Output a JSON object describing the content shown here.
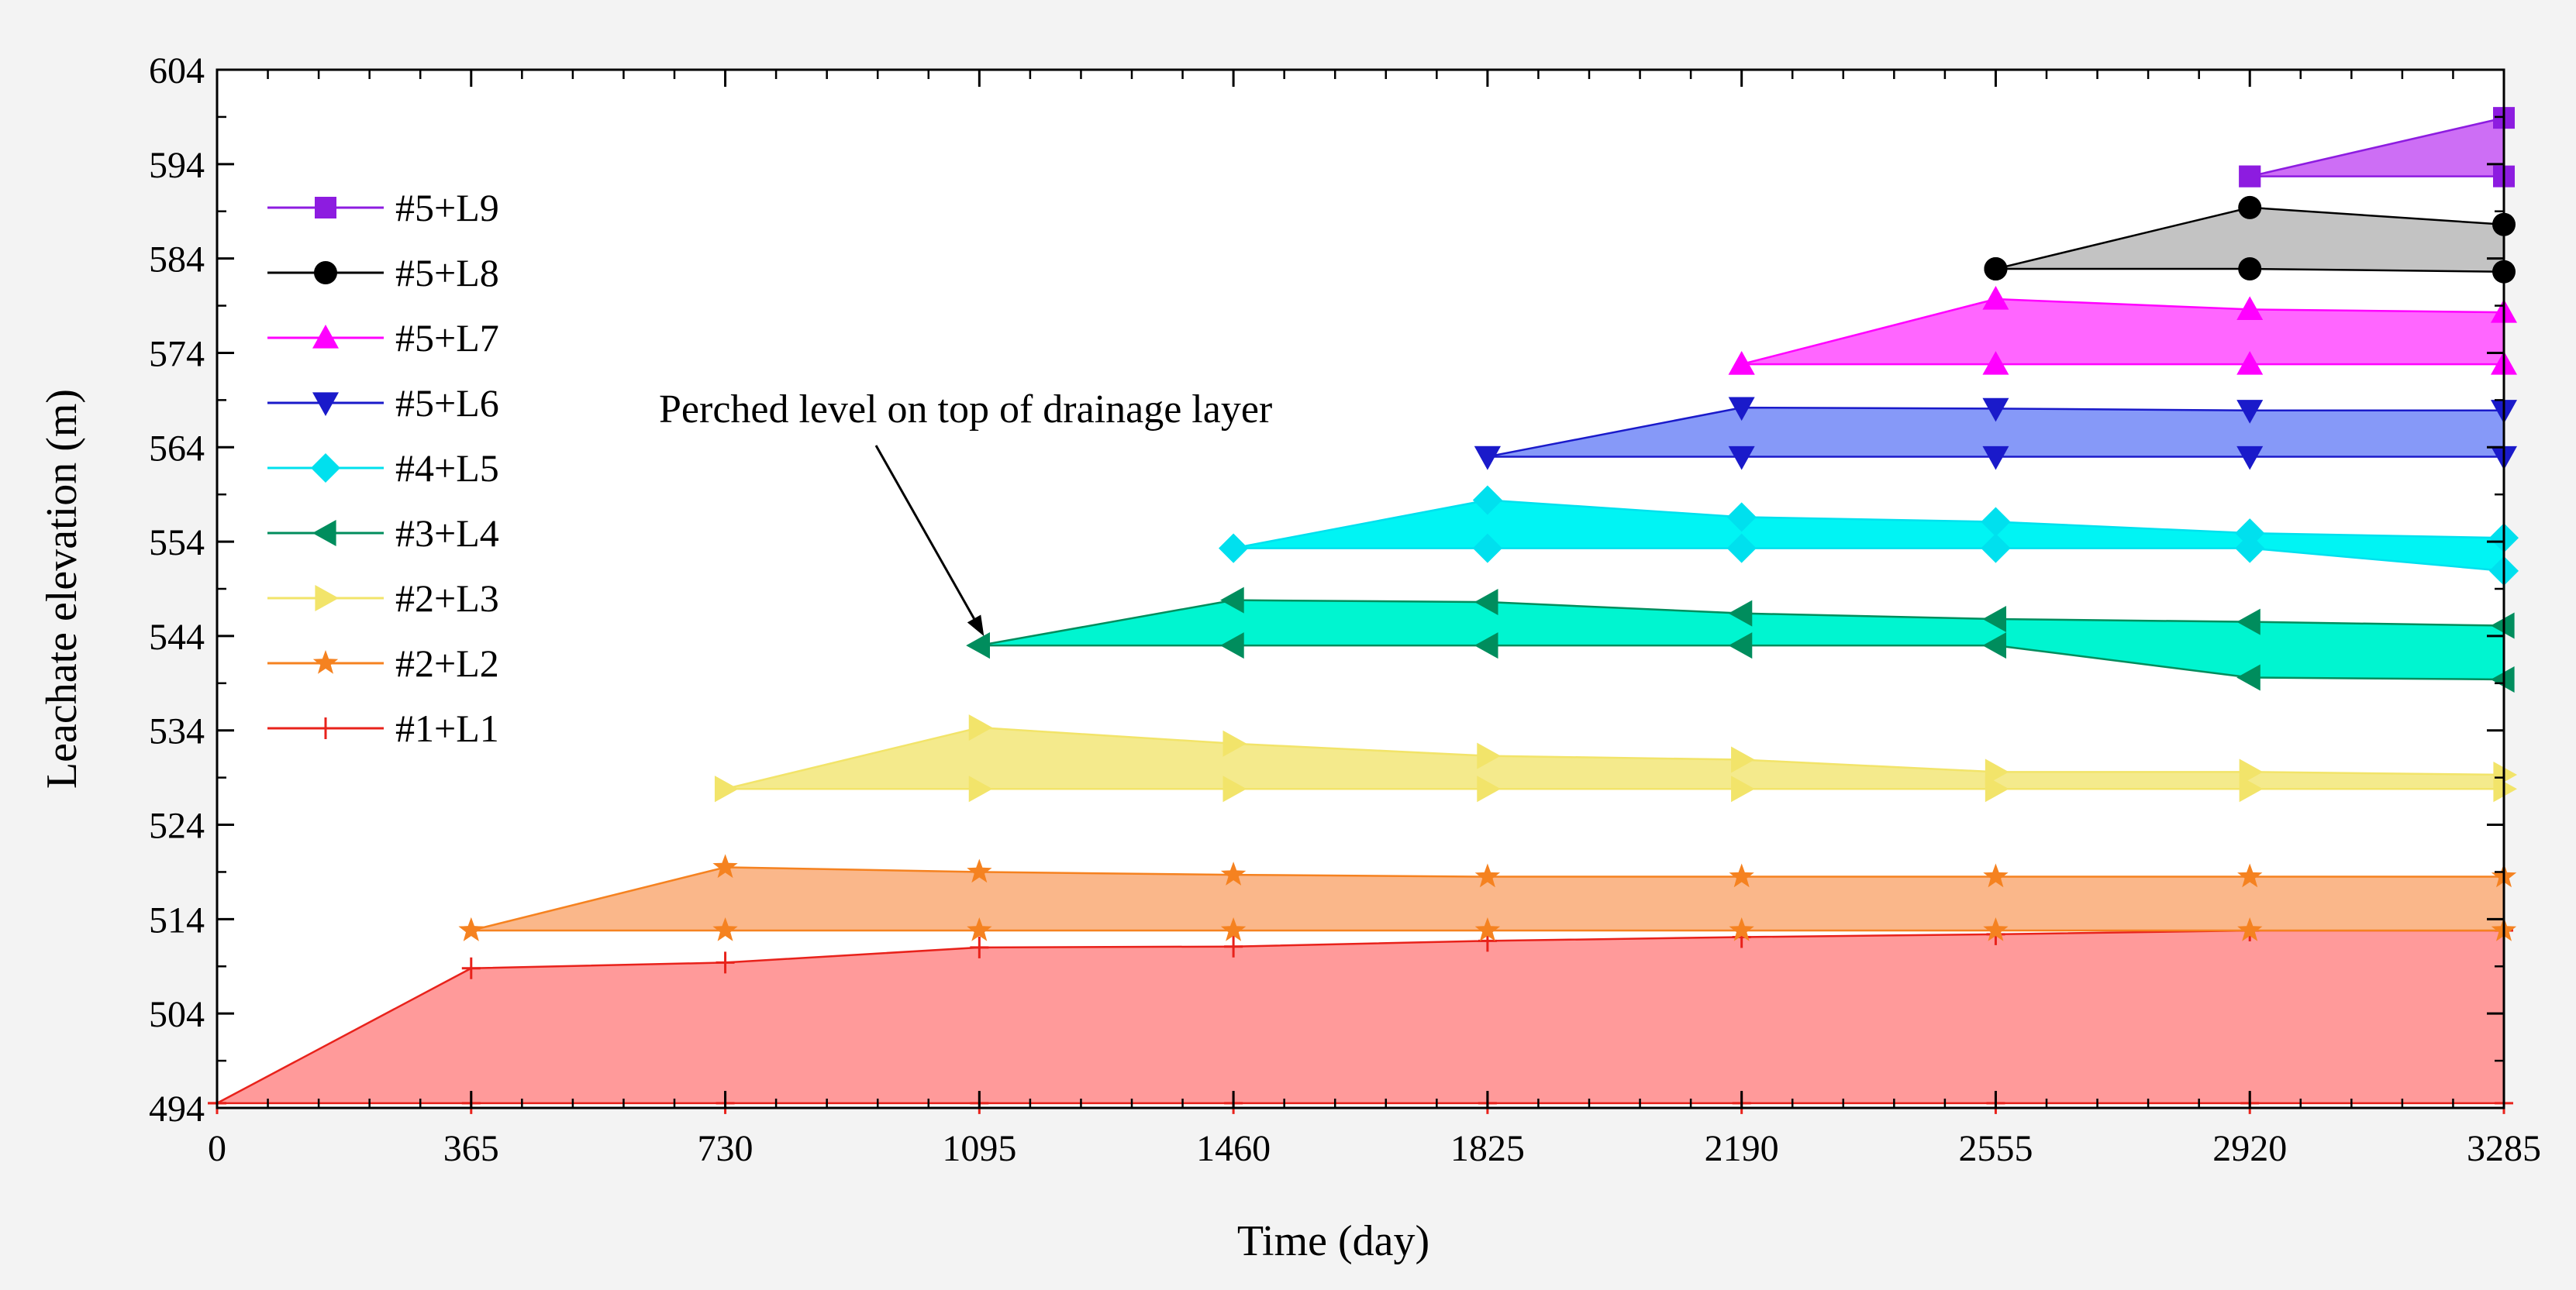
{
  "chart_data": {
    "type": "area",
    "title": "",
    "xlabel": "Time (day)",
    "ylabel": "Leachate elevation (m)",
    "xlim": [
      0,
      3285
    ],
    "ylim": [
      494,
      604
    ],
    "xticks": [
      0,
      365,
      730,
      1095,
      1460,
      1825,
      2190,
      2555,
      2920,
      3285
    ],
    "yticks": [
      494,
      504,
      514,
      524,
      534,
      544,
      554,
      564,
      574,
      584,
      594,
      604
    ],
    "legend_position": "top-left",
    "annotation": {
      "text": "Perched level on top of drainage layer",
      "points_to": {
        "x": 1095,
        "y": 543
      }
    },
    "series": [
      {
        "name": "#1+L1",
        "color": "#e8221b",
        "fill": "#ff9a9a",
        "marker": "plus",
        "x": [
          0,
          365,
          730,
          1095,
          1460,
          1825,
          2190,
          2555,
          2920,
          3285
        ],
        "upper": [
          494.5,
          508.8,
          509.4,
          511.0,
          511.1,
          511.7,
          512.1,
          512.4,
          512.8,
          512.8
        ],
        "lower": [
          494.5,
          494.5,
          494.5,
          494.5,
          494.5,
          494.5,
          494.5,
          494.5,
          494.5,
          494.5
        ]
      },
      {
        "name": "#2+L2",
        "color": "#f58220",
        "fill": "#fab78a",
        "marker": "star",
        "x": [
          365,
          730,
          1095,
          1460,
          1825,
          2190,
          2555,
          2920,
          3285
        ],
        "upper": [
          512.8,
          519.5,
          519.0,
          518.7,
          518.5,
          518.5,
          518.5,
          518.5,
          518.5
        ],
        "lower": [
          512.8,
          512.8,
          512.8,
          512.8,
          512.8,
          512.8,
          512.8,
          512.8,
          512.8
        ]
      },
      {
        "name": "#2+L3",
        "color": "#f2e46a",
        "fill": "#f4ea8c",
        "marker": "triangle-right",
        "x": [
          730,
          1095,
          1460,
          1825,
          2190,
          2555,
          2920,
          3285
        ],
        "upper": [
          527.8,
          534.3,
          532.6,
          531.3,
          530.9,
          529.6,
          529.6,
          529.3
        ],
        "lower": [
          527.8,
          527.8,
          527.8,
          527.8,
          527.8,
          527.8,
          527.8,
          527.8
        ]
      },
      {
        "name": "#3+L4",
        "color": "#008d5d",
        "fill": "#00f5d0",
        "marker": "triangle-left",
        "x": [
          1095,
          1460,
          1825,
          2190,
          2555,
          2920,
          3285
        ],
        "upper": [
          543.0,
          547.8,
          547.6,
          546.4,
          545.8,
          545.5,
          545.1
        ],
        "lower": [
          543.0,
          543.0,
          543.0,
          543.0,
          543.0,
          539.6,
          539.4
        ]
      },
      {
        "name": "#4+L5",
        "color": "#00e0ee",
        "fill": "#00f4f4",
        "marker": "diamond",
        "x": [
          1460,
          1825,
          2190,
          2555,
          2920,
          3285
        ],
        "upper": [
          553.3,
          558.4,
          556.6,
          556.1,
          554.9,
          554.4
        ],
        "lower": [
          553.3,
          553.3,
          553.3,
          553.3,
          553.3,
          550.9
        ]
      },
      {
        "name": "#5+L6",
        "color": "#1a1aca",
        "fill": "#8699f8",
        "marker": "triangle-down",
        "x": [
          1825,
          2190,
          2555,
          2920,
          3285
        ],
        "upper": [
          563.0,
          568.2,
          568.1,
          567.9,
          567.9
        ],
        "lower": [
          563.0,
          563.0,
          563.0,
          563.0,
          563.0
        ]
      },
      {
        "name": "#5+L7",
        "color": "#ff00ff",
        "fill": "#ff66ff",
        "marker": "triangle-up",
        "x": [
          2190,
          2555,
          2920,
          3285
        ],
        "upper": [
          572.8,
          579.7,
          578.6,
          578.3
        ],
        "lower": [
          572.8,
          572.8,
          572.8,
          572.8
        ]
      },
      {
        "name": "#5+L8",
        "color": "#000000",
        "fill": "#c3c3c3",
        "marker": "circle",
        "x": [
          2555,
          2920,
          3285
        ],
        "upper": [
          582.9,
          589.4,
          587.6
        ],
        "lower": [
          582.9,
          582.9,
          582.6
        ]
      },
      {
        "name": "#5+L9",
        "color": "#8d1ce0",
        "fill": "#cd6ef5",
        "marker": "square",
        "x": [
          2920,
          3285
        ],
        "upper": [
          592.7,
          598.9
        ],
        "lower": [
          592.7,
          592.7
        ]
      }
    ]
  }
}
